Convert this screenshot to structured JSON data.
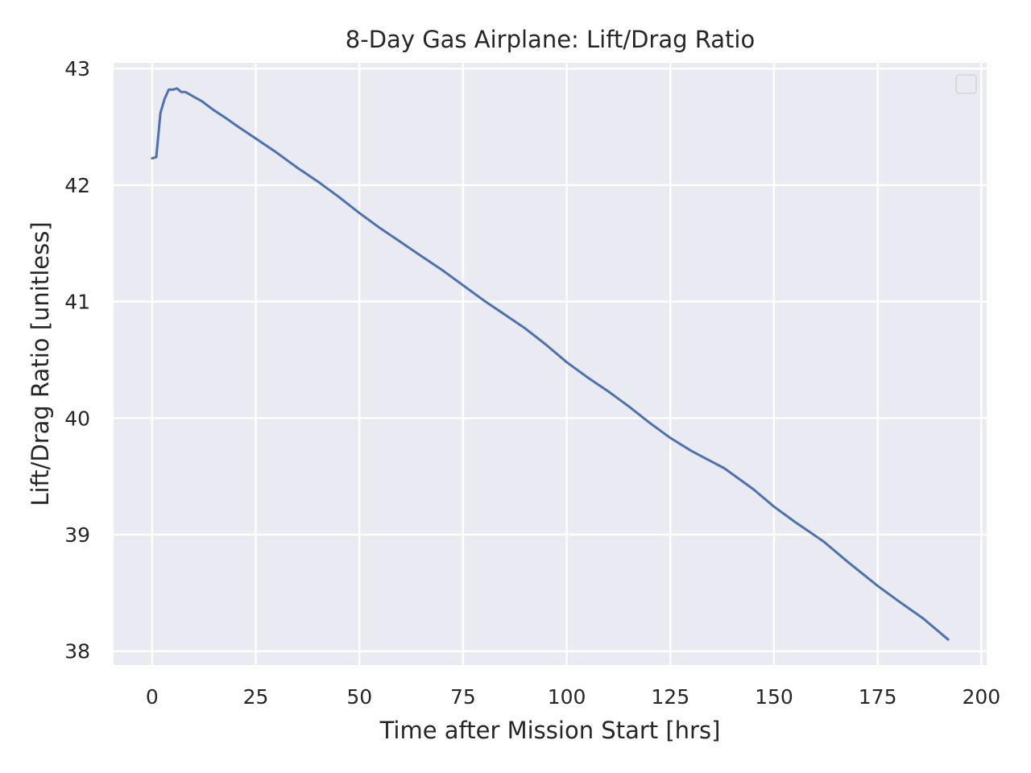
{
  "chart_data": {
    "type": "line",
    "title": "8-Day Gas Airplane: Lift/Drag Ratio",
    "xlabel": "Time after Mission Start [hrs]",
    "ylabel": "Lift/Drag Ratio [unitless]",
    "xlim": [
      -9.3,
      201.3
    ],
    "ylim": [
      37.88,
      43.05
    ],
    "xticks": [
      0,
      25,
      50,
      75,
      100,
      125,
      150,
      175,
      200
    ],
    "yticks": [
      38,
      39,
      40,
      41,
      42,
      43
    ],
    "grid": true,
    "legend": {
      "placement": "top-right",
      "entries": []
    },
    "colors": {
      "background": "#eaeaf2",
      "grid": "#ffffff",
      "line": "#4c72b0",
      "text": "#262626"
    },
    "series": [
      {
        "x": [
          0,
          1,
          2,
          3,
          4,
          5,
          6,
          7,
          8,
          9,
          10,
          12,
          15,
          18,
          20,
          25,
          30,
          35,
          40,
          45,
          50,
          55,
          60,
          65,
          70,
          75,
          80,
          85,
          90,
          95,
          100,
          105,
          110,
          115,
          120,
          125,
          130,
          138,
          145,
          150,
          155,
          162,
          168,
          175,
          180,
          186,
          192
        ],
        "values": [
          42.23,
          42.24,
          42.62,
          42.74,
          42.82,
          42.82,
          42.83,
          42.8,
          42.8,
          42.78,
          42.76,
          42.72,
          42.64,
          42.57,
          42.52,
          42.4,
          42.28,
          42.15,
          42.03,
          41.9,
          41.76,
          41.63,
          41.51,
          41.39,
          41.27,
          41.14,
          41.01,
          40.89,
          40.77,
          40.63,
          40.48,
          40.35,
          40.23,
          40.1,
          39.96,
          39.83,
          39.72,
          39.57,
          39.39,
          39.24,
          39.11,
          38.94,
          38.76,
          38.56,
          38.43,
          38.28,
          38.1
        ]
      }
    ]
  }
}
